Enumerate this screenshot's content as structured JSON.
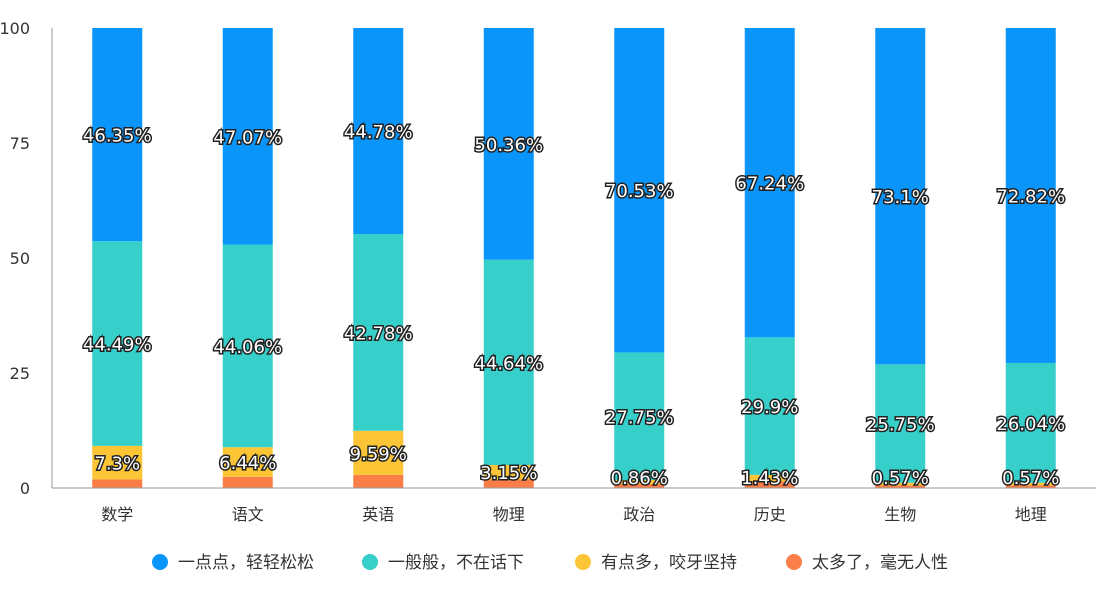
{
  "chart_data": {
    "type": "bar",
    "stacked": true,
    "categories": [
      "数学",
      "语文",
      "英语",
      "物理",
      "政治",
      "历史",
      "生物",
      "地理"
    ],
    "ylim": [
      0,
      100
    ],
    "yticks": [
      0,
      25,
      50,
      75,
      100
    ],
    "legend_position": "bottom",
    "grid": false,
    "series": [
      {
        "name": "太多了，毫无人性",
        "color": "#fb7e49",
        "values": [
          1.86,
          2.43,
          2.85,
          1.85,
          0.86,
          1.43,
          0.57,
          0.57
        ],
        "labels": [
          "",
          "",
          "",
          "",
          "",
          "",
          "",
          ""
        ]
      },
      {
        "name": "有点多，咬牙坚持",
        "color": "#fcc536",
        "values": [
          7.3,
          6.44,
          9.59,
          3.15,
          0.86,
          1.43,
          0.57,
          0.57
        ],
        "labels": [
          "7.3%",
          "6.44%",
          "9.59%",
          "3.15%",
          "0.86%",
          "1.43%",
          "0.57%",
          "0.57%"
        ]
      },
      {
        "name": "一般般，不在话下",
        "color": "#36cfc9",
        "values": [
          44.49,
          44.06,
          42.78,
          44.64,
          27.75,
          29.9,
          25.75,
          26.04
        ],
        "labels": [
          "44.49%",
          "44.06%",
          "42.78%",
          "44.64%",
          "27.75%",
          "29.9%",
          "25.75%",
          "26.04%"
        ]
      },
      {
        "name": "一点点，轻轻松松",
        "color": "#0a95fa",
        "values": [
          46.35,
          47.07,
          44.78,
          50.36,
          70.53,
          67.24,
          73.1,
          72.82
        ],
        "labels": [
          "46.35%",
          "47.07%",
          "44.78%",
          "50.36%",
          "70.53%",
          "67.24%",
          "73.1%",
          "72.82%"
        ]
      }
    ],
    "legend_order": [
      3,
      2,
      1,
      0
    ]
  }
}
